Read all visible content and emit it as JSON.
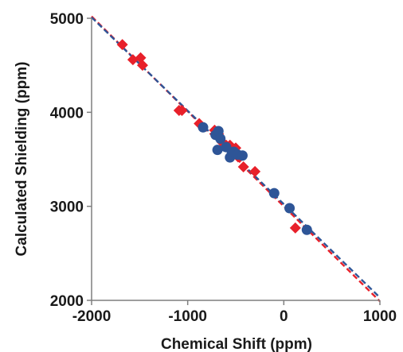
{
  "chart_data": {
    "type": "scatter",
    "title": "",
    "xlabel": "Chemical Shift (ppm)",
    "ylabel": "Calculated Shielding (ppm)",
    "xlim": [
      -2000,
      1000
    ],
    "ylim": [
      2000,
      5000
    ],
    "x_ticks": [
      "-2000",
      "-1000",
      "0",
      "1000"
    ],
    "y_ticks": [
      "2000",
      "3000",
      "4000",
      "5000"
    ],
    "grid": false,
    "legend": "none",
    "series": [
      {
        "marker": "diamond",
        "color": "#e8202a",
        "points": [
          [
            -1680,
            4720
          ],
          [
            -1570,
            4560
          ],
          [
            -1490,
            4580
          ],
          [
            -1470,
            4500
          ],
          [
            -1090,
            4020
          ],
          [
            -1060,
            4020
          ],
          [
            -880,
            3880
          ],
          [
            -720,
            3810
          ],
          [
            -680,
            3770
          ],
          [
            -640,
            3680
          ],
          [
            -600,
            3650
          ],
          [
            -560,
            3650
          ],
          [
            -500,
            3620
          ],
          [
            -460,
            3520
          ],
          [
            -420,
            3420
          ],
          [
            -300,
            3370
          ],
          [
            120,
            2770
          ]
        ],
        "fit": {
          "x": [
            -2000,
            1000
          ],
          "y": [
            5020,
            1990
          ],
          "style": "dashed"
        }
      },
      {
        "marker": "circle",
        "color": "#2e5597",
        "points": [
          [
            -840,
            3840
          ],
          [
            -710,
            3760
          ],
          [
            -680,
            3800
          ],
          [
            -660,
            3720
          ],
          [
            -690,
            3600
          ],
          [
            -600,
            3630
          ],
          [
            -560,
            3520
          ],
          [
            -540,
            3570
          ],
          [
            -520,
            3580
          ],
          [
            -480,
            3550
          ],
          [
            -430,
            3540
          ],
          [
            -100,
            3140
          ],
          [
            60,
            2980
          ],
          [
            240,
            2750
          ]
        ],
        "fit": {
          "x": [
            -2000,
            1000
          ],
          "y": [
            5010,
            2030
          ],
          "style": "dashed"
        }
      }
    ]
  }
}
